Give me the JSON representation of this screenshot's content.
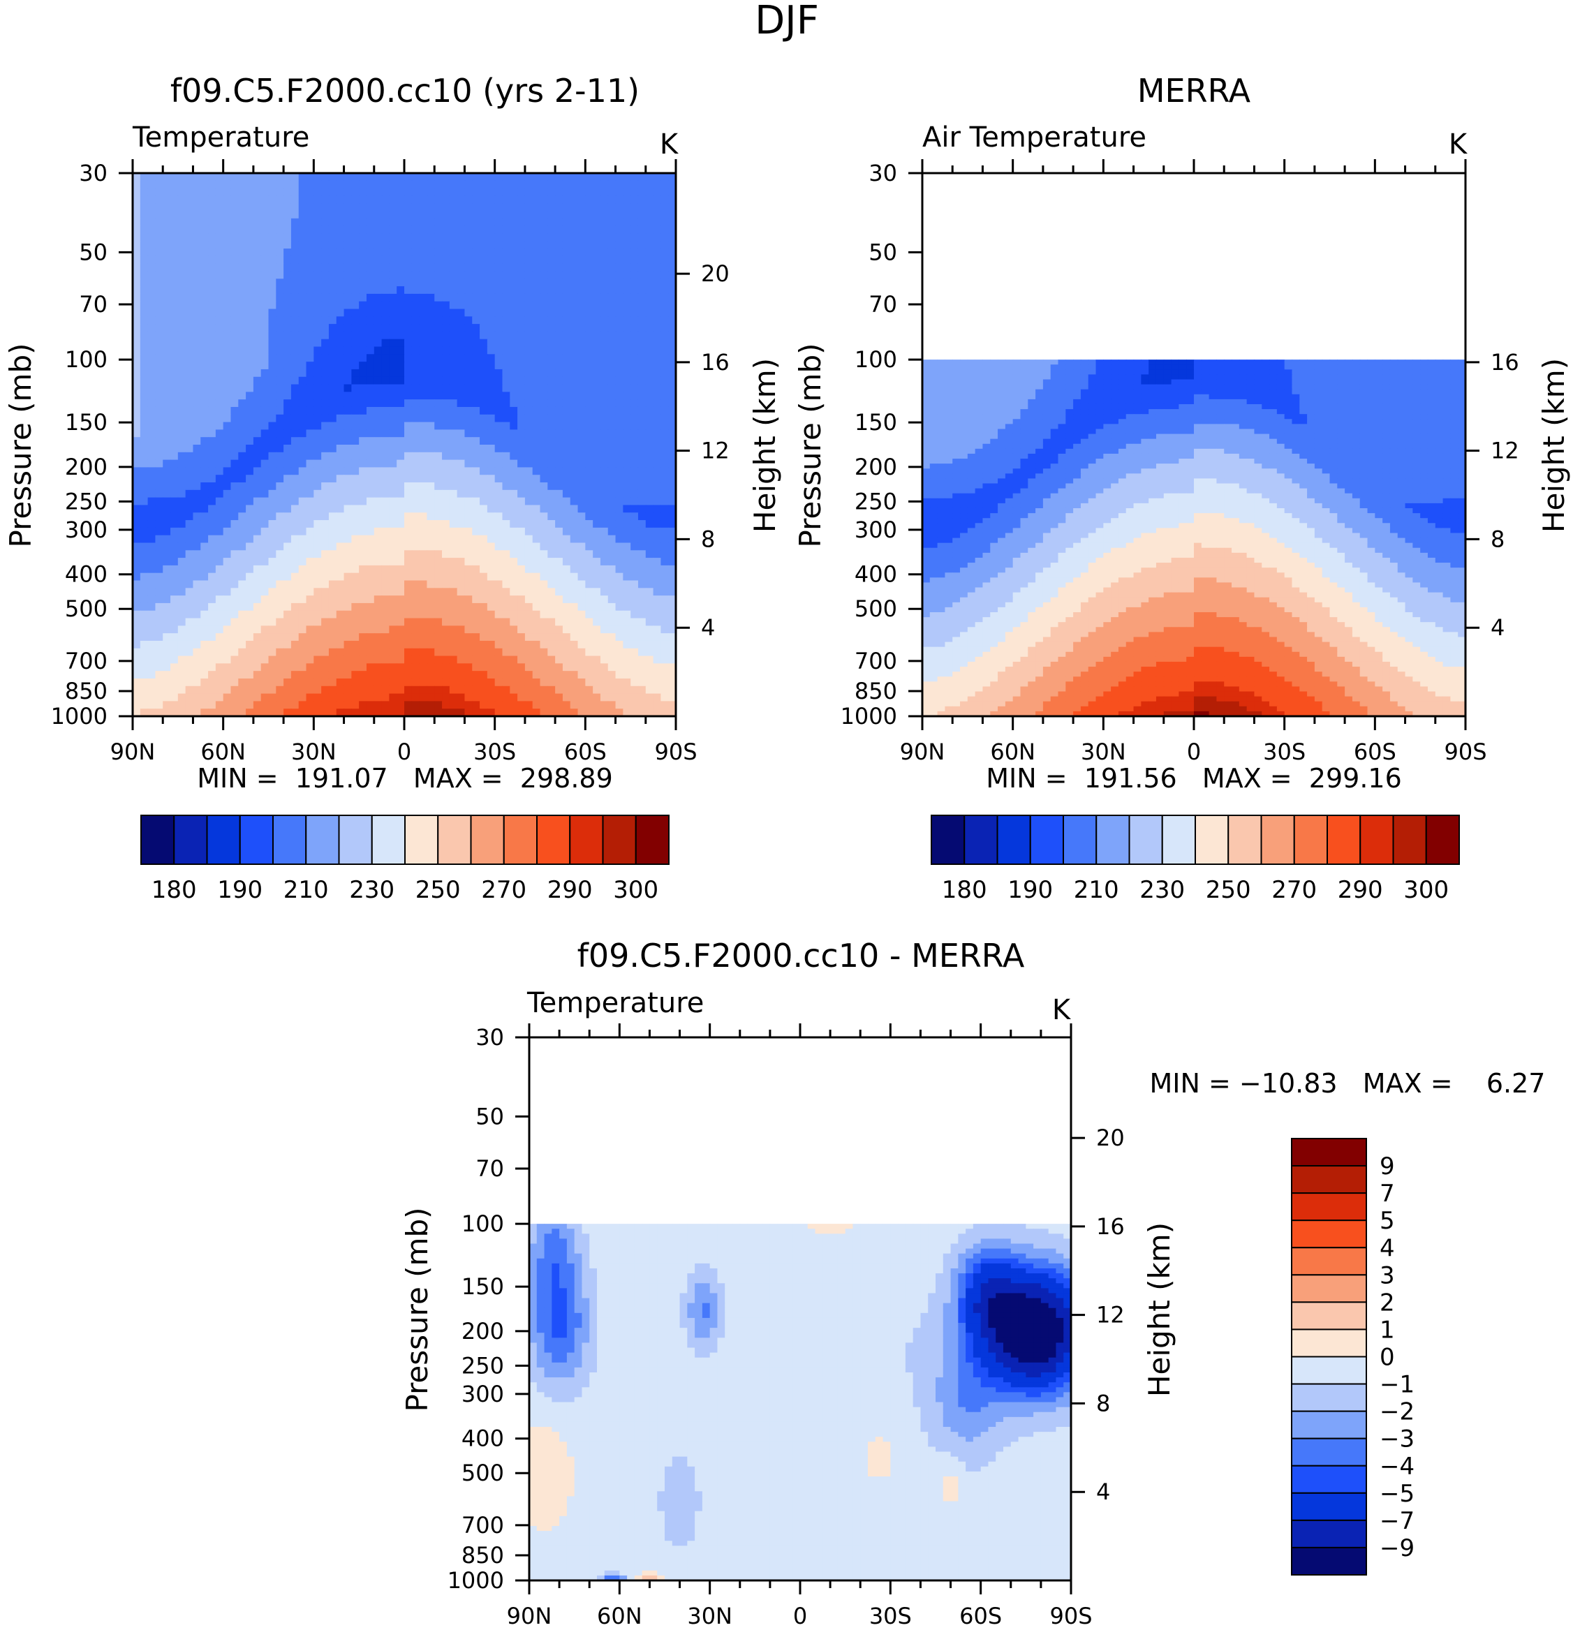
{
  "figure_title": "DJF",
  "chart_data": [
    {
      "type": "heatmap",
      "panel": "model",
      "title": "f09.C5.F2000.cc10 (yrs 2-11)",
      "left_string": "Temperature",
      "right_string": "K",
      "ylabel": "Pressure (mb)",
      "ylabel_right": "Height (km)",
      "x_ticks": [
        "90N",
        "60N",
        "30N",
        "0",
        "30S",
        "60S",
        "90S"
      ],
      "y_ticks": [
        30,
        50,
        70,
        100,
        150,
        200,
        250,
        300,
        400,
        500,
        700,
        850,
        1000
      ],
      "height_ticks": [
        4,
        8,
        12,
        16,
        20
      ],
      "ylim": [
        1000,
        30
      ],
      "data_top": 30,
      "min": "191.07",
      "max": "298.89",
      "stat_text": "MIN =  191.07   MAX =  298.89",
      "level_labels": [
        "180",
        "190",
        "210",
        "230",
        "250",
        "270",
        "290",
        "300"
      ],
      "color_levels": [
        175,
        180,
        185,
        190,
        200,
        210,
        220,
        230,
        240,
        250,
        260,
        270,
        280,
        290,
        295,
        300,
        305
      ],
      "profile": {
        "stratosphere": 214,
        "trop_high": 198,
        "trop_mid": 209,
        "hemisphere_asym": 7,
        "surface_eq": 298,
        "surface_pole": 253,
        "lapse_km": 6.4
      }
    },
    {
      "type": "heatmap",
      "panel": "obs",
      "title": "MERRA",
      "left_string": "Air Temperature",
      "right_string": "K",
      "ylabel": "Pressure (mb)",
      "ylabel_right": "Height (km)",
      "x_ticks": [
        "90N",
        "60N",
        "30N",
        "0",
        "30S",
        "60S",
        "90S"
      ],
      "y_ticks": [
        30,
        50,
        70,
        100,
        150,
        200,
        250,
        300,
        400,
        500,
        700,
        850,
        1000
      ],
      "height_ticks": [
        4,
        8,
        12,
        16
      ],
      "ylim": [
        1000,
        30
      ],
      "data_top": 100,
      "min": "191.56",
      "max": "299.16",
      "stat_text": "MIN =  191.56   MAX =  299.16",
      "level_labels": [
        "180",
        "190",
        "210",
        "230",
        "250",
        "270",
        "290",
        "300"
      ],
      "color_levels": [
        175,
        180,
        185,
        190,
        200,
        210,
        220,
        230,
        240,
        250,
        260,
        270,
        280,
        290,
        295,
        300,
        305
      ],
      "profile": {
        "stratosphere": 214,
        "trop_high": 197,
        "trop_mid": 210,
        "hemisphere_asym": 6,
        "surface_eq": 299,
        "surface_pole": 252,
        "lapse_km": 6.4
      }
    },
    {
      "type": "heatmap",
      "panel": "diff",
      "title": "f09.C5.F2000.cc10 - MERRA",
      "left_string": "Temperature",
      "right_string": "K",
      "ylabel": "Pressure (mb)",
      "ylabel_right": "Height (km)",
      "x_ticks": [
        "90N",
        "60N",
        "30N",
        "0",
        "30S",
        "60S",
        "90S"
      ],
      "y_ticks": [
        30,
        50,
        70,
        100,
        150,
        200,
        250,
        300,
        400,
        500,
        700,
        850,
        1000
      ],
      "height_ticks": [
        4,
        8,
        12,
        16,
        20
      ],
      "ylim": [
        1000,
        30
      ],
      "data_top": 100,
      "min": "-10.83",
      "max": "6.27",
      "stat_text": "MIN = −10.83   MAX =    6.27",
      "level_labels": [
        "9",
        "7",
        "5",
        "4",
        "3",
        "2",
        "1",
        "0",
        "−1",
        "−2",
        "−3",
        "−4",
        "−5",
        "−7",
        "−9"
      ],
      "color_levels": [
        -11,
        -9,
        -7,
        -5,
        -4,
        -3,
        -2,
        -1,
        0,
        1,
        2,
        3,
        4,
        5,
        7,
        9,
        11
      ],
      "anomalies": [
        {
          "lat": -78,
          "p": 200,
          "amp": -11.5,
          "wlat": 17,
          "wp": 0.38
        },
        {
          "lat": -62,
          "p": 155,
          "amp": -4.5,
          "wlat": 10,
          "wp": 0.3
        },
        {
          "lat": -55,
          "p": 320,
          "amp": -2.2,
          "wlat": 12,
          "wp": 0.4
        },
        {
          "lat": 80,
          "p": 190,
          "amp": -3.8,
          "wlat": 10,
          "wp": 0.4
        },
        {
          "lat": 82,
          "p": 115,
          "amp": -2.5,
          "wlat": 8,
          "wp": 0.3
        },
        {
          "lat": 32,
          "p": 175,
          "amp": -2.7,
          "wlat": 6,
          "wp": 0.25
        },
        {
          "lat": 40,
          "p": 600,
          "amp": -1.4,
          "wlat": 7,
          "wp": 0.32
        },
        {
          "lat": 85,
          "p": 500,
          "amp": 1.2,
          "wlat": 9,
          "wp": 0.35
        },
        {
          "lat": -26,
          "p": 450,
          "amp": 1.0,
          "wlat": 5,
          "wp": 0.15
        },
        {
          "lat": -50,
          "p": 520,
          "amp": 1.0,
          "wlat": 4,
          "wp": 0.2
        },
        {
          "lat": -10,
          "p": 102,
          "amp": 0.9,
          "wlat": 9,
          "wp": 0.05
        },
        {
          "lat": 50,
          "p": 1000,
          "amp": 2.5,
          "wlat": 5,
          "wp": 0.04
        },
        {
          "lat": 62,
          "p": 1000,
          "amp": -3.5,
          "wlat": 5,
          "wp": 0.04
        }
      ]
    }
  ]
}
